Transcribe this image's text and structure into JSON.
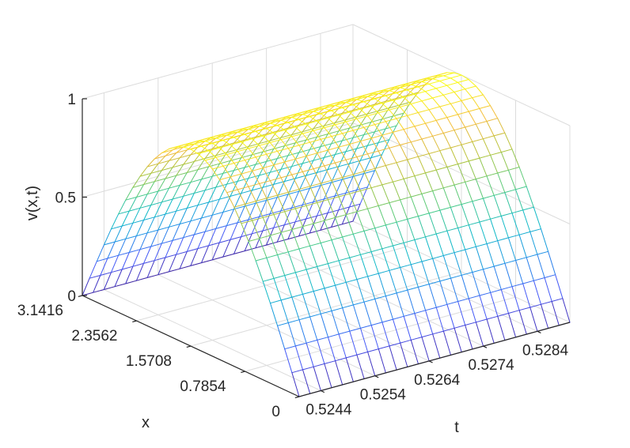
{
  "chart_data": {
    "type": "surface",
    "title": "",
    "xlabel": "t",
    "ylabel": "x",
    "zlabel": "v(x,t)",
    "function": "v = sin(x), constant in t",
    "t_ticks": [
      "0.5244",
      "0.5254",
      "0.5264",
      "0.5274",
      "0.5284"
    ],
    "t_tick_values": [
      0.5244,
      0.5254,
      0.5264,
      0.5274,
      0.5284
    ],
    "x_ticks": [
      "0",
      "0.7854",
      "1.5708",
      "2.3562",
      "3.1416"
    ],
    "x_tick_values": [
      0,
      0.7854,
      1.5708,
      2.3562,
      3.1416
    ],
    "z_ticks": [
      "0",
      "0.5",
      "1"
    ],
    "z_tick_values": [
      0,
      0.5,
      1
    ],
    "tlim": [
      0.524,
      0.529
    ],
    "xlim": [
      0,
      3.1416
    ],
    "zlim": [
      0,
      1
    ],
    "mesh_t_count": 26,
    "mesh_x_count": 31,
    "sample_x": [
      0,
      0.7854,
      1.5708,
      2.3562,
      3.1416
    ],
    "sample_v": [
      0,
      0.7071,
      1,
      0.7071,
      0
    ],
    "grid": true,
    "colormap": "parula"
  }
}
